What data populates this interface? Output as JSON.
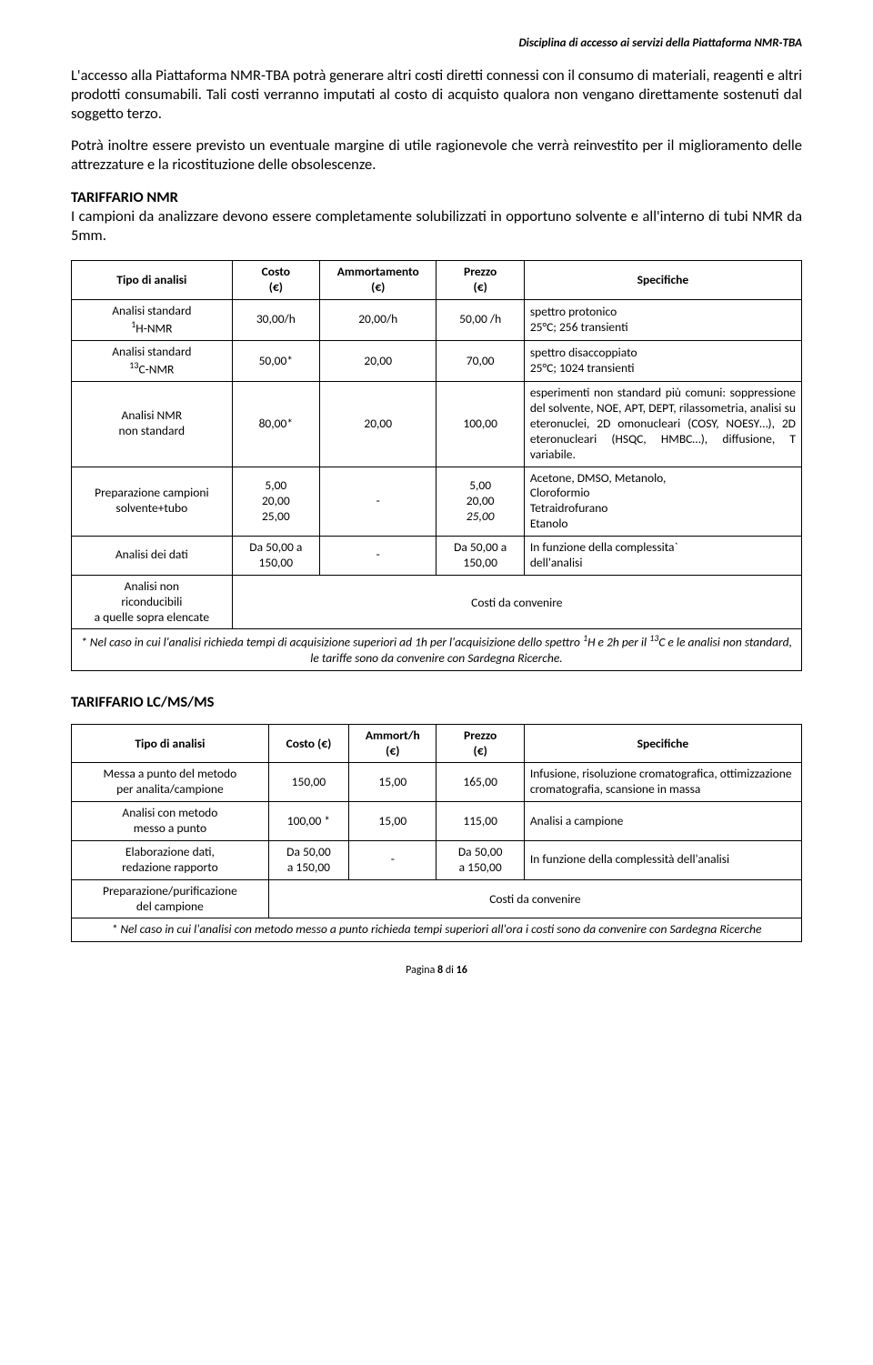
{
  "header": {
    "title": "Disciplina di accesso ai servizi della Piattaforma NMR-TBA"
  },
  "para1": "L'accesso alla Piattaforma NMR-TBA potrà generare altri costi diretti connessi con il consumo di materiali, reagenti e altri prodotti consumabili. Tali costi verranno imputati al costo di acquisto qualora non vengano direttamente sostenuti dal soggetto terzo.",
  "para2": "Potrà inoltre essere previsto un eventuale margine di utile ragionevole che verrà reinvestito per il miglioramento delle attrezzature e la ricostituzione delle obsolescenze.",
  "section_nmr": {
    "title": "TARIFFARIO NMR",
    "intro": "I campioni da analizzare devono essere completamente solubilizzati in opportuno solvente e all'interno di tubi NMR da 5mm."
  },
  "nmr_table": {
    "columns": [
      "Tipo di analisi",
      "Costo\n(€)",
      "Ammortamento\n(€)",
      "Prezzo\n(€)",
      "Specifiche"
    ],
    "rows": [
      {
        "type_html": "Analisi standard<br><span class='sup'>1</span>H-NMR",
        "cost": "30,00/h",
        "amm": "20,00/h",
        "price": "50,00 /h",
        "spec": "spettro protonico<br>25°C; 256 transienti"
      },
      {
        "type_html": "Analisi standard<br><span class='sup'>13</span>C-NMR",
        "cost": "50,00*",
        "amm": "20,00",
        "price": "70,00",
        "spec": "spettro disaccoppiato<br>25°C; 1024 transienti"
      },
      {
        "type_html": "Analisi NMR<br>non standard",
        "cost": "80,00*",
        "amm": "20,00",
        "price": "100,00",
        "spec": "esperimenti non standard più comuni: soppressione del solvente, NOE, APT, DEPT, rilassometria, analisi su eteronuclei, 2D omonucleari (COSY, NOESY…), 2D eteronucleari (HSQC, HMBC…), diffusione, T variabile.",
        "spec_justify": true
      },
      {
        "type_html": "Preparazione campioni<br>solvente+tubo",
        "cost": "5,00<br>20,00<br>25,00",
        "amm": "-",
        "price": "5,00<br>20,00<br><span class='ital'>25,00</span>",
        "spec": "Acetone, DMSO, Metanolo,<br>Cloroformio<br>Tetraidrofurano<br>Etanolo"
      },
      {
        "type_html": "Analisi dei dati",
        "cost": "Da 50,00 a<br>150,00",
        "amm": "-",
        "price": "Da 50,00 a<br>150,00",
        "spec": "In funzione della complessita`<br>dell'analisi"
      },
      {
        "type_html": "Analisi non<br>riconducibili<br>a quelle sopra elencate",
        "merged_text": "Costi da convenire"
      }
    ],
    "footnote_html": "* Nel caso in cui l'analisi richieda tempi di acquisizione superiori ad 1h per l'acquisizione dello spettro <span class='sup'>1</span>H e 2h per il <span class='sup'>13</span>C e le analisi non standard, le tariffe sono da convenire con Sardegna Ricerche."
  },
  "section_lcms": {
    "title": "TARIFFARIO LC/MS/MS"
  },
  "lcms_table": {
    "columns": [
      "Tipo di analisi",
      "Costo (€)",
      "Ammort/h\n(€)",
      "Prezzo\n(€)",
      "Specifiche"
    ],
    "rows": [
      {
        "type_html": "Messa a punto del metodo<br>per analita/campione",
        "cost": "150,00",
        "amm": "15,00",
        "price": "165,00",
        "spec": "Infusione, risoluzione cromatografica, ottimizzazione cromatografia, scansione in massa"
      },
      {
        "type_html": "Analisi con metodo<br>messo a punto",
        "cost": "100,00 *",
        "amm": "15,00",
        "price": "115,00",
        "spec": "Analisi a campione"
      },
      {
        "type_html": "Elaborazione dati,<br>redazione rapporto",
        "cost": "Da 50,00<br>a 150,00",
        "amm": "-",
        "price": "Da 50,00<br>a 150,00",
        "spec": "In funzione della complessità dell'analisi"
      },
      {
        "type_html": "Preparazione/purificazione<br>del campione",
        "merged_text": "Costi da convenire"
      }
    ],
    "footnote": "* Nel caso in cui l'analisi con metodo messo a punto richieda tempi superiori all'ora i costi sono da convenire con Sardegna Ricerche"
  },
  "footer": {
    "label": "Pagina",
    "num": "8",
    "of": "di",
    "total": "16"
  }
}
